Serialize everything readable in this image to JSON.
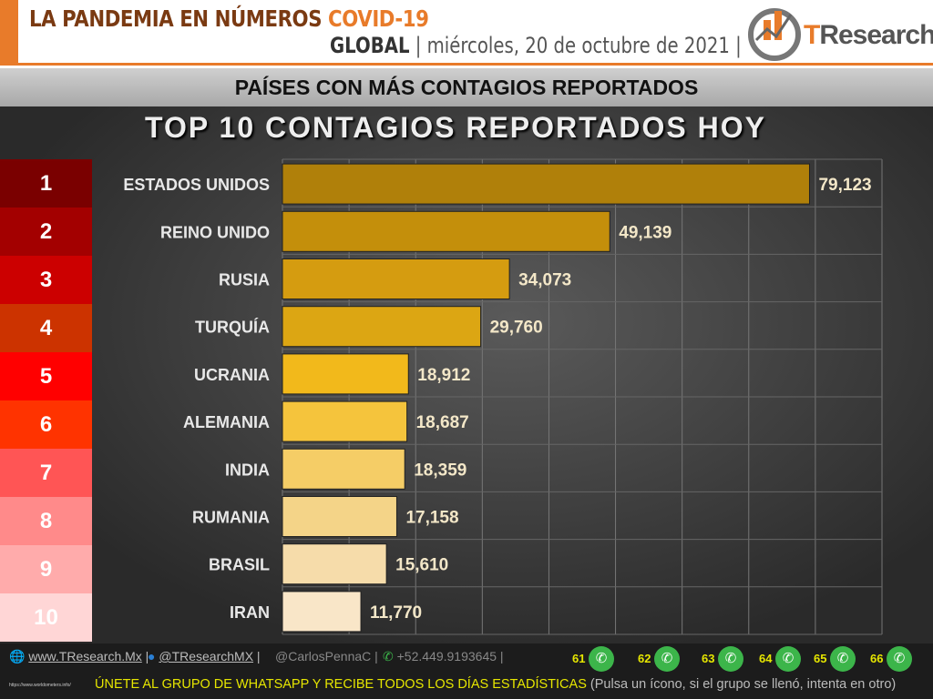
{
  "header": {
    "title": "LA PANDEMIA EN NÚMEROS",
    "title_accent": "COVID-19",
    "scope": "GLOBAL",
    "date": "miércoles, 20 de octubre de 2021",
    "logo": "TResearch"
  },
  "subtitle": "PAÍSES CON MÁS CONTAGIOS REPORTADOS",
  "chart_data": {
    "type": "bar",
    "orientation": "horizontal",
    "title": "TOP 10 CONTAGIOS REPORTADOS HOY",
    "categories": [
      "ESTADOS UNIDOS",
      "REINO UNIDO",
      "RUSIA",
      "TURQUÍA",
      "UCRANIA",
      "ALEMANIA",
      "INDIA",
      "RUMANIA",
      "BRASIL",
      "IRAN"
    ],
    "values": [
      79123,
      49139,
      34073,
      29760,
      18912,
      18687,
      18359,
      17158,
      15610,
      11770
    ],
    "labels": [
      "79,123",
      "49,139",
      "34,073",
      "29,760",
      "18,912",
      "18,687",
      "18,359",
      "17,158",
      "15,610",
      "11,770"
    ],
    "ranks": [
      "1",
      "2",
      "3",
      "4",
      "5",
      "6",
      "7",
      "8",
      "9",
      "10"
    ],
    "rank_colors": [
      "#7a0000",
      "#a30000",
      "#cc0000",
      "#cc3300",
      "#ff0000",
      "#ff3300",
      "#ff5555",
      "#ff8a8a",
      "#ffabab",
      "#ffd6d6"
    ],
    "bar_colors": [
      "#b0800a",
      "#c48f0b",
      "#d59c10",
      "#dca613",
      "#f2b91b",
      "#f5c43c",
      "#f5cd66",
      "#f4d488",
      "#f6dcaa",
      "#f9e6c8"
    ],
    "xlim": [
      0,
      90000
    ],
    "grid": true
  },
  "footer": {
    "web": "www.TResearch.Mx",
    "twitter": "@TResearchMX",
    "user": "@CarlosPennaC",
    "phone": "+52.449.9193645",
    "groups": [
      "61",
      "62",
      "63",
      "64",
      "65",
      "66"
    ],
    "cta": "ÚNETE AL GRUPO DE WHATSAPP Y RECIBE TODOS LOS DÍAS ESTADÍSTICAS",
    "cta_note": "(Pulsa un ícono, si el grupo se llenó, intenta en otro)"
  }
}
